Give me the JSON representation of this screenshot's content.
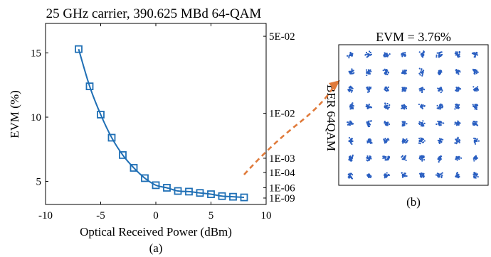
{
  "chart_data": [
    {
      "type": "line",
      "title": "25 GHz carrier, 390.625 MBd 64-QAM",
      "xlabel": "Optical Received Power (dBm)",
      "ylabel": "EVM (%)",
      "y2label": "BER 64QAM",
      "caption": "(a)",
      "xlim": [
        -10,
        10
      ],
      "ylim": [
        3.2,
        17.3
      ],
      "xticks": [
        -10,
        -5,
        0,
        5,
        10
      ],
      "yticks": [
        5,
        10,
        15
      ],
      "y2ticks": [
        {
          "label": "5E-02",
          "evm": 16.3
        },
        {
          "label": "1E-02",
          "evm": 10.3
        },
        {
          "label": "1E-03",
          "evm": 6.8
        },
        {
          "label": "1E-04",
          "evm": 5.7
        },
        {
          "label": "1E-06",
          "evm": 4.5
        },
        {
          "label": "1E-09",
          "evm": 3.7
        }
      ],
      "grid": false,
      "series": [
        {
          "marker": "square",
          "color": "#1f6fb5",
          "x": [
            -7,
            -6,
            -5,
            -4,
            -3,
            -2,
            -1,
            0,
            1,
            2,
            3,
            4,
            5,
            6,
            7,
            8
          ],
          "y": [
            15.3,
            12.4,
            10.2,
            8.4,
            7.05,
            6.05,
            5.25,
            4.7,
            4.5,
            4.25,
            4.2,
            4.1,
            4.0,
            3.85,
            3.8,
            3.75
          ]
        }
      ]
    },
    {
      "type": "scatter",
      "title": "EVM = 3.76%",
      "caption": "(b)",
      "constellation": "64-QAM",
      "grid_size": 8,
      "color": "#2a5fc1"
    }
  ],
  "annotation": {
    "arrow_color": "#e07a3a"
  }
}
